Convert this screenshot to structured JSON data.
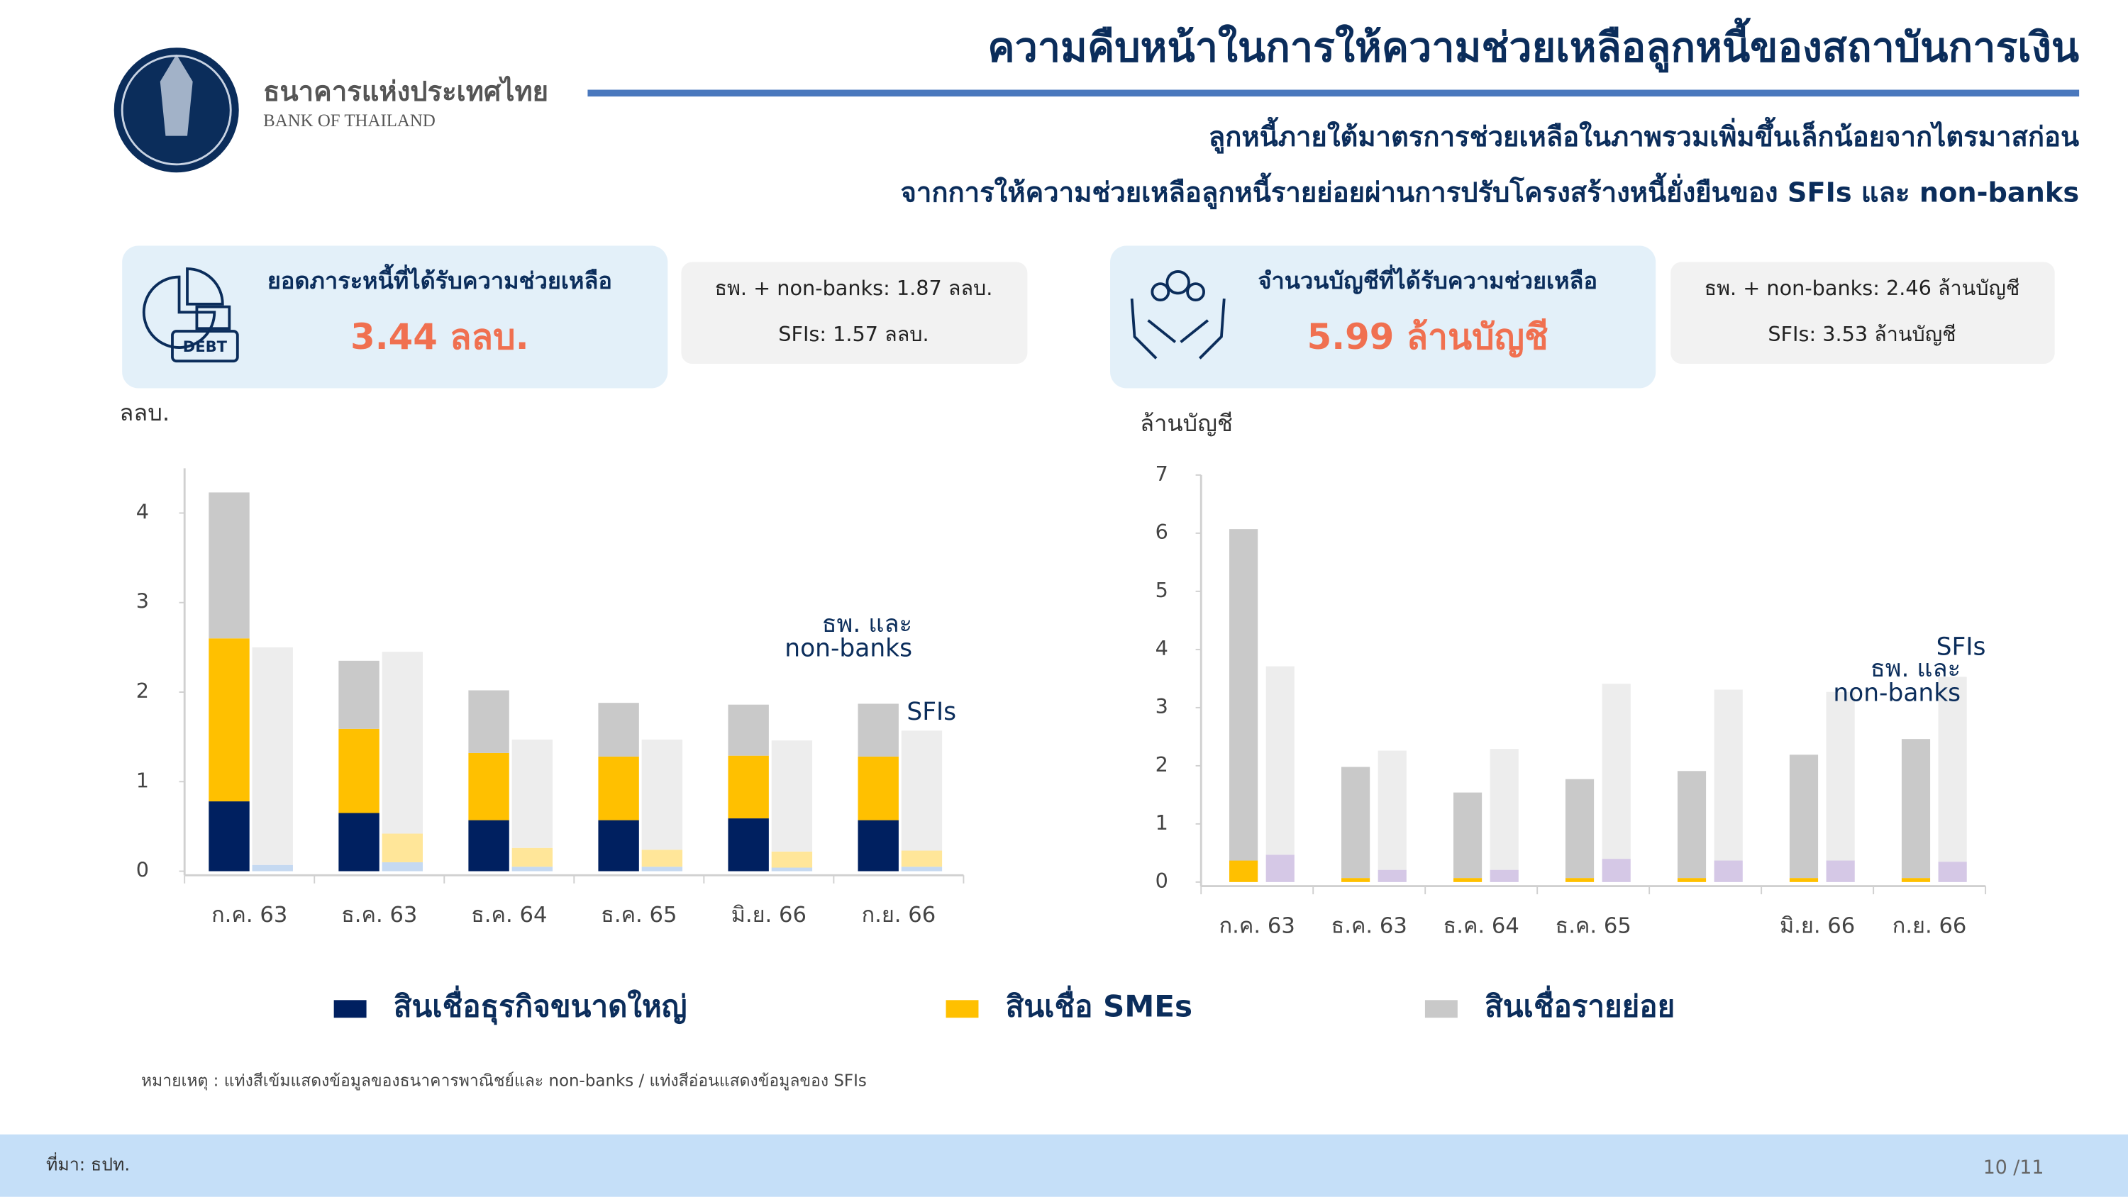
{
  "header": {
    "bank_name": "ธนาคารแห่งประเทศไทย",
    "bank_name_en": "BANK OF THAILAND",
    "title": "ความคืบหน้าในการให้ความช่วยเหลือลูกหนี้ของสถาบันการเงิน",
    "subtitle": [
      "ลูกหนี้ภายใต้มาตรการช่วยเหลือในภาพรวมเพิ่มขึ้นเล็กน้อยจากไตรมาสก่อน",
      "จากการให้ความช่วยเหลือลูกหนี้รายย่อยผ่านการปรับโครงสร้างหนี้ยั่งยืนของ SFIs และ non-banks"
    ]
  },
  "cards": [
    {
      "label": "ยอดภาระหนี้ที่ได้รับความช่วยเหลือ",
      "value": "3.44 ลลบ.",
      "details": [
        "ธพ. + non-banks: 1.87 ลลบ.",
        "SFIs: 1.57 ลลบ."
      ]
    },
    {
      "label": "จำนวนบัญชีที่ได้รับความช่วยเหลือ",
      "value": "5.99 ล้านบัญชี",
      "details": [
        "ธพ. + non-banks: 2.46 ล้านบัญชี",
        "SFIs: 3.53 ล้านบัญชี"
      ]
    }
  ],
  "chart_data": [
    {
      "type": "bar",
      "ylabel": "ลลบ.",
      "categories": [
        "ก.ค. 63",
        "ธ.ค. 63",
        "ธ.ค. 64",
        "ธ.ค. 65",
        "มิ.ย. 66",
        "ก.ย. 66"
      ],
      "ylim": [
        0,
        4.5
      ],
      "yticks": [
        0,
        1,
        2,
        3,
        4
      ],
      "stacks": [
        {
          "name": [
            "ธพ. และ",
            "non-banks"
          ],
          "series": [
            {
              "color": "#002060",
              "values": [
                0.78,
                0.65,
                0.57,
                0.57,
                0.59,
                0.57
              ]
            },
            {
              "color": "#ffc000",
              "values": [
                1.82,
                0.94,
                0.75,
                0.71,
                0.7,
                0.71
              ]
            },
            {
              "color": "#c9c9c9",
              "values": [
                1.63,
                0.76,
                0.7,
                0.6,
                0.57,
                0.59
              ]
            }
          ]
        },
        {
          "name": [
            "SFIs"
          ],
          "series": [
            {
              "color": "#c5d9f1",
              "values": [
                0.07,
                0.1,
                0.05,
                0.05,
                0.04,
                0.05
              ]
            },
            {
              "color": "#ffe699",
              "values": [
                0.0,
                0.32,
                0.21,
                0.19,
                0.18,
                0.18
              ]
            },
            {
              "color": "#ededed",
              "values": [
                2.43,
                2.03,
                1.21,
                1.23,
                1.24,
                1.34
              ]
            }
          ]
        }
      ]
    },
    {
      "type": "bar",
      "ylabel": "ล้านบัญชี",
      "categories": [
        "ก.ค. 63",
        "ธ.ค. 63",
        "ธ.ค. 64",
        "ธ.ค. 65",
        null,
        "มิ.ย. 66",
        "ก.ย. 66"
      ],
      "ylim": [
        0,
        7
      ],
      "yticks": [
        0,
        1,
        2,
        3,
        4,
        5,
        6,
        7
      ],
      "stacks": [
        {
          "name": [
            "ธพ. และ",
            "non-banks"
          ],
          "series": [
            {
              "color": "#ffc000",
              "values": [
                0.37,
                0.07,
                0.07,
                0.07,
                0.07,
                0.07,
                0.07
              ]
            },
            {
              "color": "#c9c9c9",
              "values": [
                5.7,
                1.91,
                1.47,
                1.7,
                1.84,
                2.12,
                2.39
              ]
            }
          ]
        },
        {
          "name": [
            "SFIs"
          ],
          "series": [
            {
              "color": "#d5c8e6",
              "values": [
                0.47,
                0.21,
                0.21,
                0.4,
                0.37,
                0.37,
                0.35
              ]
            },
            {
              "color": "#ededed",
              "values": [
                3.24,
                2.05,
                2.08,
                3.01,
                2.94,
                2.9,
                3.18
              ]
            }
          ]
        }
      ]
    }
  ],
  "legend": [
    {
      "name": "สินเชื่อธุรกิจขนาดใหญ่",
      "color": "#002060"
    },
    {
      "name": "สินเชื่อ SMEs",
      "color": "#ffc000"
    },
    {
      "name": "สินเชื่อรายย่อย",
      "color": "#c9c9c9"
    }
  ],
  "note": "หมายเหตุ : แท่งสีเข้มแสดงข้อมูลของธนาคารพาณิชย์และ non-banks / แท่งสีอ่อนแสดงข้อมูลของ SFIs",
  "footer": {
    "source": "ที่มา: ธปท.",
    "page": "10 /11"
  }
}
